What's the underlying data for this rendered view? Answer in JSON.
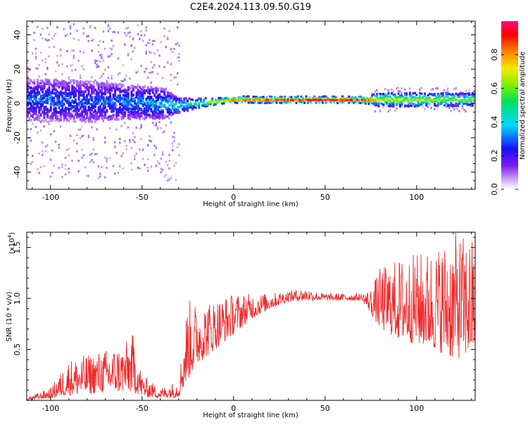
{
  "title": "C2E4.2024.113.09.50.G19",
  "top_panel": {
    "xlabel": "Height of straight line (km)",
    "ylabel": "Frequency (Hz)",
    "colorbar_label": "Normalized spectral amplitude",
    "colorbar_ticks": [
      "0.0",
      "0.2",
      "0.4",
      "0.6",
      "0.8"
    ]
  },
  "bottom_panel": {
    "xlabel": "Height of straight line (km)",
    "ylabel": "SNR (10 * v/v)",
    "multiplier": "(x10",
    "multiplier_exp": "4",
    "multiplier_close": ")"
  },
  "colors": {
    "snr_line": "#ee2b2b",
    "axis": "#000000"
  },
  "chart_data": [
    {
      "type": "heatmap",
      "title": "C2E4.2024.113.09.50.G19",
      "xlabel": "Height of straight line (km)",
      "ylabel": "Frequency (Hz)",
      "xlim": [
        -113,
        132
      ],
      "ylim": [
        -50,
        48
      ],
      "xticks": [
        -100,
        -50,
        0,
        50,
        100
      ],
      "yticks": [
        -40,
        -20,
        0,
        20,
        40
      ],
      "colorbar": {
        "label": "Normalized spectral amplitude",
        "range": [
          0,
          1
        ],
        "ticks": [
          0.0,
          0.2,
          0.4,
          0.6,
          0.8
        ],
        "colormap": "rainbow"
      },
      "ridge": {
        "description_points_x": [
          -113,
          -100,
          -80,
          -60,
          -40,
          -30,
          -20,
          -10,
          0,
          10,
          30,
          50,
          70,
          80,
          100,
          132
        ],
        "center_freq_hz": [
          2,
          2,
          1,
          1,
          0,
          -1,
          0,
          1,
          2,
          2,
          2,
          2,
          2,
          2,
          2,
          2
        ],
        "spread_hz": [
          12,
          12,
          12,
          10,
          9,
          4,
          3,
          2,
          2,
          2,
          2,
          2,
          2,
          4,
          4,
          4
        ],
        "amplitude": [
          0.3,
          0.35,
          0.3,
          0.35,
          0.4,
          0.5,
          0.6,
          0.7,
          0.8,
          0.85,
          0.9,
          0.95,
          0.9,
          0.7,
          0.7,
          0.6
        ]
      }
    },
    {
      "type": "line",
      "xlabel": "Height of straight line (km)",
      "ylabel": "SNR (10 * v/v)",
      "y_multiplier": "x10^4",
      "xlim": [
        -113,
        132
      ],
      "ylim": [
        0,
        1.65
      ],
      "xticks": [
        -100,
        -50,
        0,
        50,
        100
      ],
      "yticks": [
        0.5,
        1.0,
        1.5
      ],
      "series": [
        {
          "color": "#ee2b2b",
          "envelope_x": [
            -113,
            -100,
            -90,
            -80,
            -70,
            -60,
            -55,
            -50,
            -40,
            -30,
            -25,
            -20,
            -10,
            0,
            10,
            20,
            30,
            40,
            50,
            60,
            70,
            75,
            80,
            90,
            100,
            110,
            120,
            132
          ],
          "envelope_low": [
            0.0,
            0.02,
            0.05,
            0.06,
            0.08,
            0.08,
            0.08,
            0.04,
            0.02,
            0.03,
            0.2,
            0.35,
            0.5,
            0.65,
            0.8,
            0.9,
            0.97,
            0.98,
            0.98,
            0.98,
            0.98,
            0.85,
            0.7,
            0.6,
            0.55,
            0.5,
            0.4,
            0.45
          ],
          "envelope_high": [
            0.03,
            0.12,
            0.4,
            0.45,
            0.5,
            0.55,
            0.66,
            0.25,
            0.12,
            0.2,
            1.0,
            0.95,
            1.0,
            1.05,
            1.05,
            1.05,
            1.08,
            1.1,
            1.05,
            1.05,
            1.05,
            1.1,
            1.3,
            1.4,
            1.45,
            1.5,
            1.65,
            1.6
          ]
        }
      ]
    }
  ]
}
